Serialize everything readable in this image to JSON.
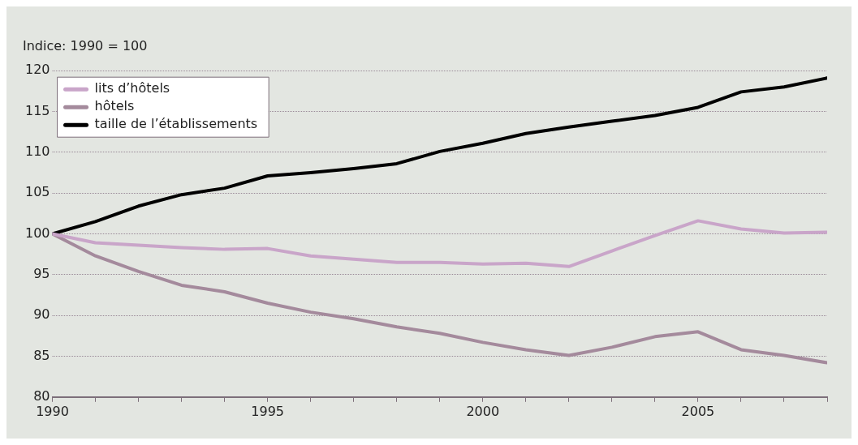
{
  "chart_data": {
    "type": "line",
    "subtitle": "Indice: 1990 = 100",
    "x": [
      1990,
      1991,
      1992,
      1993,
      1994,
      1995,
      1996,
      1997,
      1998,
      1999,
      2000,
      2001,
      2002,
      2003,
      2004,
      2005,
      2006,
      2007,
      2008
    ],
    "series": [
      {
        "name": "lits d’hôtels",
        "color": "#c9a5c9",
        "values": [
          100,
          98.9,
          98.6,
          98.3,
          98.1,
          98.2,
          97.3,
          96.9,
          96.5,
          96.5,
          96.3,
          96.4,
          96.0,
          97.9,
          99.8,
          101.6,
          100.6,
          100.1,
          100.2
        ]
      },
      {
        "name": "hôtels",
        "color": "#a48a9c",
        "values": [
          100,
          97.3,
          95.4,
          93.7,
          92.9,
          91.5,
          90.4,
          89.6,
          88.6,
          87.8,
          86.7,
          85.8,
          85.1,
          86.1,
          87.4,
          88.0,
          85.8,
          85.1,
          84.2
        ]
      },
      {
        "name": "taille de l’établissements",
        "color": "#000000",
        "values": [
          100,
          101.5,
          103.4,
          104.8,
          105.6,
          107.1,
          107.5,
          108.0,
          108.6,
          110.1,
          111.1,
          112.3,
          113.1,
          113.8,
          114.5,
          115.5,
          117.4,
          118.0,
          119.1
        ]
      }
    ],
    "xlim": [
      1990,
      2008
    ],
    "xticks": [
      1990,
      {
        "value": 1991,
        "label": null
      },
      {
        "value": 1992,
        "label": null
      },
      {
        "value": 1993,
        "label": null
      },
      {
        "value": 1994,
        "label": null
      },
      1995,
      {
        "value": 1996,
        "label": null
      },
      {
        "value": 1997,
        "label": null
      },
      {
        "value": 1998,
        "label": null
      },
      {
        "value": 1999,
        "label": null
      },
      2000,
      {
        "value": 2001,
        "label": null
      },
      {
        "value": 2002,
        "label": null
      },
      {
        "value": 2003,
        "label": null
      },
      {
        "value": 2004,
        "label": null
      },
      2005,
      {
        "value": 2006,
        "label": null
      },
      {
        "value": 2007,
        "label": null
      },
      {
        "value": 2008,
        "label": null
      }
    ],
    "ylim": [
      80,
      120
    ],
    "yticks": [
      80,
      85,
      90,
      95,
      100,
      105,
      110,
      115,
      120
    ],
    "grid": "y",
    "legend": "top left",
    "marker": "none",
    "line_style": "solid"
  }
}
